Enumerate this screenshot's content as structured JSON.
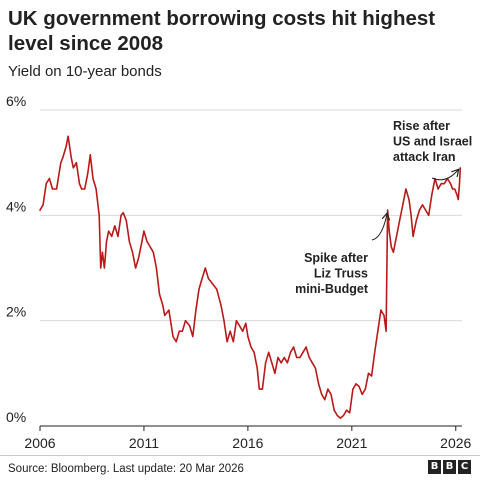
{
  "title": "UK government borrowing costs hit highest level since 2008",
  "subtitle": "Yield on 10-year bonds",
  "source": "Source: Bloomberg. Last update: 20 Mar 2026",
  "logo": {
    "letters": [
      "B",
      "B",
      "C"
    ]
  },
  "colors": {
    "line": "#bb1919",
    "grid": "#d9d9d9",
    "axis": "#222222",
    "text": "#222222"
  },
  "chart_data": {
    "type": "line",
    "xlabel": "",
    "ylabel": "",
    "x_ticks": [
      "2006",
      "2011",
      "2016",
      "2021",
      "2026"
    ],
    "y_ticks": [
      "0%",
      "2%",
      "4%",
      "6%"
    ],
    "xlim": [
      2006,
      2026.3
    ],
    "ylim": [
      0,
      6
    ],
    "grid": true,
    "series": [
      {
        "values": [
          [
            2006.0,
            4.1
          ],
          [
            2006.15,
            4.2
          ],
          [
            2006.3,
            4.6
          ],
          [
            2006.45,
            4.7
          ],
          [
            2006.6,
            4.5
          ],
          [
            2006.8,
            4.5
          ],
          [
            2007.0,
            5.0
          ],
          [
            2007.1,
            5.1
          ],
          [
            2007.25,
            5.3
          ],
          [
            2007.35,
            5.5
          ],
          [
            2007.5,
            5.1
          ],
          [
            2007.6,
            4.9
          ],
          [
            2007.75,
            5.0
          ],
          [
            2007.9,
            4.6
          ],
          [
            2008.0,
            4.5
          ],
          [
            2008.15,
            4.5
          ],
          [
            2008.3,
            4.8
          ],
          [
            2008.42,
            5.15
          ],
          [
            2008.55,
            4.7
          ],
          [
            2008.7,
            4.5
          ],
          [
            2008.85,
            4.0
          ],
          [
            2008.92,
            3.0
          ],
          [
            2009.0,
            3.3
          ],
          [
            2009.1,
            3.0
          ],
          [
            2009.2,
            3.5
          ],
          [
            2009.3,
            3.7
          ],
          [
            2009.45,
            3.6
          ],
          [
            2009.6,
            3.8
          ],
          [
            2009.75,
            3.6
          ],
          [
            2009.9,
            4.0
          ],
          [
            2010.0,
            4.05
          ],
          [
            2010.15,
            3.9
          ],
          [
            2010.3,
            3.5
          ],
          [
            2010.45,
            3.3
          ],
          [
            2010.6,
            3.0
          ],
          [
            2010.75,
            3.2
          ],
          [
            2010.9,
            3.5
          ],
          [
            2011.0,
            3.7
          ],
          [
            2011.15,
            3.5
          ],
          [
            2011.3,
            3.4
          ],
          [
            2011.45,
            3.3
          ],
          [
            2011.6,
            3.0
          ],
          [
            2011.75,
            2.5
          ],
          [
            2011.9,
            2.3
          ],
          [
            2012.0,
            2.1
          ],
          [
            2012.2,
            2.2
          ],
          [
            2012.4,
            1.7
          ],
          [
            2012.55,
            1.6
          ],
          [
            2012.7,
            1.8
          ],
          [
            2012.85,
            1.8
          ],
          [
            2013.0,
            2.0
          ],
          [
            2013.2,
            1.9
          ],
          [
            2013.35,
            1.7
          ],
          [
            2013.5,
            2.2
          ],
          [
            2013.65,
            2.6
          ],
          [
            2013.8,
            2.8
          ],
          [
            2013.95,
            3.0
          ],
          [
            2014.1,
            2.8
          ],
          [
            2014.3,
            2.7
          ],
          [
            2014.5,
            2.6
          ],
          [
            2014.7,
            2.3
          ],
          [
            2014.85,
            2.0
          ],
          [
            2015.0,
            1.6
          ],
          [
            2015.15,
            1.8
          ],
          [
            2015.3,
            1.6
          ],
          [
            2015.45,
            2.0
          ],
          [
            2015.6,
            1.9
          ],
          [
            2015.75,
            1.8
          ],
          [
            2015.9,
            1.95
          ],
          [
            2016.0,
            1.7
          ],
          [
            2016.15,
            1.5
          ],
          [
            2016.3,
            1.4
          ],
          [
            2016.45,
            1.1
          ],
          [
            2016.55,
            0.7
          ],
          [
            2016.7,
            0.7
          ],
          [
            2016.85,
            1.2
          ],
          [
            2017.0,
            1.4
          ],
          [
            2017.15,
            1.2
          ],
          [
            2017.3,
            1.0
          ],
          [
            2017.45,
            1.3
          ],
          [
            2017.6,
            1.2
          ],
          [
            2017.75,
            1.3
          ],
          [
            2017.9,
            1.2
          ],
          [
            2018.05,
            1.4
          ],
          [
            2018.2,
            1.5
          ],
          [
            2018.35,
            1.3
          ],
          [
            2018.5,
            1.3
          ],
          [
            2018.65,
            1.4
          ],
          [
            2018.8,
            1.5
          ],
          [
            2018.95,
            1.3
          ],
          [
            2019.1,
            1.2
          ],
          [
            2019.25,
            1.1
          ],
          [
            2019.4,
            0.8
          ],
          [
            2019.55,
            0.6
          ],
          [
            2019.7,
            0.5
          ],
          [
            2019.85,
            0.7
          ],
          [
            2020.0,
            0.6
          ],
          [
            2020.15,
            0.3
          ],
          [
            2020.3,
            0.2
          ],
          [
            2020.45,
            0.15
          ],
          [
            2020.6,
            0.2
          ],
          [
            2020.75,
            0.3
          ],
          [
            2020.9,
            0.25
          ],
          [
            2021.05,
            0.7
          ],
          [
            2021.2,
            0.8
          ],
          [
            2021.35,
            0.75
          ],
          [
            2021.5,
            0.6
          ],
          [
            2021.65,
            0.7
          ],
          [
            2021.8,
            1.0
          ],
          [
            2021.95,
            0.95
          ],
          [
            2022.1,
            1.4
          ],
          [
            2022.25,
            1.8
          ],
          [
            2022.4,
            2.2
          ],
          [
            2022.55,
            2.1
          ],
          [
            2022.65,
            1.8
          ],
          [
            2022.72,
            4.1
          ],
          [
            2022.8,
            3.7
          ],
          [
            2022.9,
            3.4
          ],
          [
            2023.0,
            3.3
          ],
          [
            2023.15,
            3.6
          ],
          [
            2023.3,
            3.9
          ],
          [
            2023.45,
            4.2
          ],
          [
            2023.6,
            4.5
          ],
          [
            2023.75,
            4.3
          ],
          [
            2023.85,
            4.0
          ],
          [
            2023.95,
            3.6
          ],
          [
            2024.1,
            3.9
          ],
          [
            2024.25,
            4.1
          ],
          [
            2024.4,
            4.2
          ],
          [
            2024.55,
            4.1
          ],
          [
            2024.7,
            4.0
          ],
          [
            2024.85,
            4.4
          ],
          [
            2025.0,
            4.7
          ],
          [
            2025.15,
            4.5
          ],
          [
            2025.3,
            4.6
          ],
          [
            2025.45,
            4.6
          ],
          [
            2025.6,
            4.7
          ],
          [
            2025.75,
            4.6
          ],
          [
            2025.85,
            4.5
          ],
          [
            2025.95,
            4.5
          ],
          [
            2026.05,
            4.4
          ],
          [
            2026.12,
            4.3
          ],
          [
            2026.18,
            4.6
          ],
          [
            2026.22,
            4.9
          ]
        ]
      }
    ],
    "annotations": [
      {
        "lines": [
          "Rise after",
          "US and Israel",
          "attack Iran"
        ]
      },
      {
        "lines": [
          "Spike after",
          "Liz Truss",
          "mini-Budget"
        ]
      }
    ]
  }
}
